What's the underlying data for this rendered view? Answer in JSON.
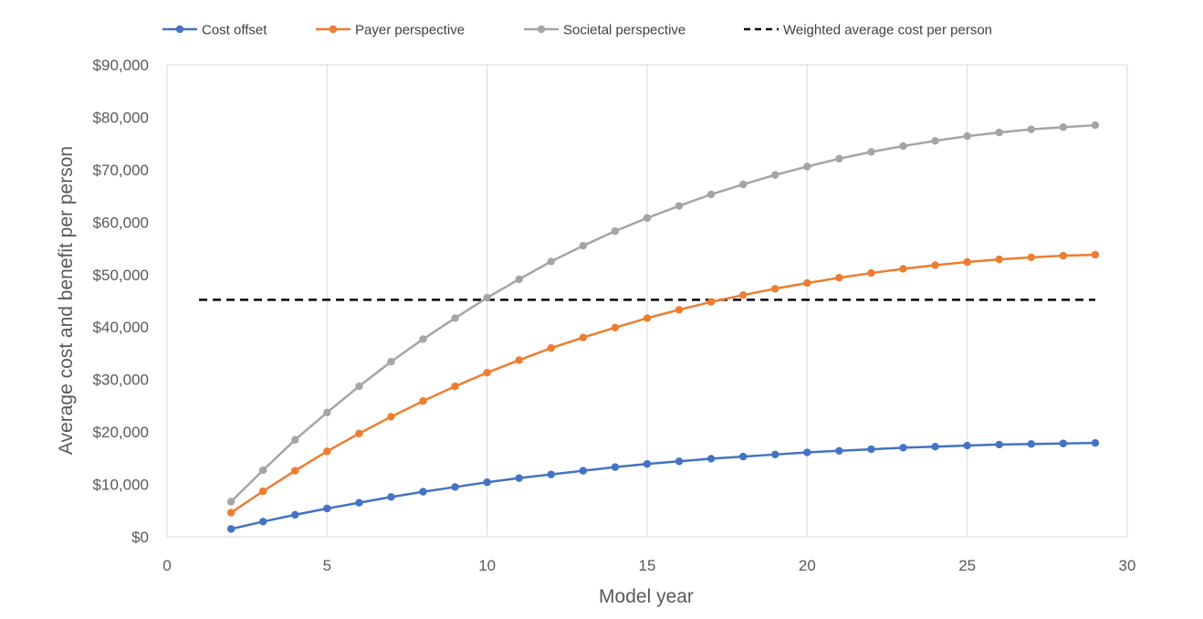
{
  "chart_data": {
    "type": "line",
    "title": "",
    "xlabel": "Model year",
    "ylabel": "Average cost and benefit per person",
    "xlim": [
      0,
      30
    ],
    "ylim": [
      0,
      90000
    ],
    "x_ticks": [
      0,
      5,
      10,
      15,
      20,
      25,
      30
    ],
    "y_ticks": [
      0,
      10000,
      20000,
      30000,
      40000,
      50000,
      60000,
      70000,
      80000,
      90000
    ],
    "y_tick_labels": [
      "$0",
      "$10,000",
      "$20,000",
      "$30,000",
      "$40,000",
      "$50,000",
      "$60,000",
      "$70,000",
      "$80,000",
      "$90,000"
    ],
    "grid": "vertical",
    "legend": "top",
    "x": [
      2,
      3,
      4,
      5,
      6,
      7,
      8,
      9,
      10,
      11,
      12,
      13,
      14,
      15,
      16,
      17,
      18,
      19,
      20,
      21,
      22,
      23,
      24,
      25,
      26,
      27,
      28,
      29
    ],
    "series": [
      {
        "name": "Cost offset",
        "color": "#4472c4",
        "values": [
          1500,
          2900,
          4200,
          5400,
          6500,
          7600,
          8600,
          9500,
          10400,
          11200,
          11900,
          12600,
          13300,
          13900,
          14400,
          14900,
          15300,
          15700,
          16100,
          16400,
          16700,
          17000,
          17200,
          17400,
          17600,
          17700,
          17800,
          17900
        ]
      },
      {
        "name": "Payer perspective",
        "color": "#ed7d31",
        "values": [
          4600,
          8700,
          12600,
          16300,
          19700,
          22900,
          25900,
          28700,
          31300,
          33700,
          36000,
          38000,
          39900,
          41700,
          43300,
          44800,
          46100,
          47300,
          48400,
          49400,
          50300,
          51100,
          51800,
          52400,
          52900,
          53300,
          53600,
          53800
        ]
      },
      {
        "name": "Societal perspective",
        "color": "#a5a5a5",
        "values": [
          6700,
          12700,
          18500,
          23700,
          28700,
          33400,
          37700,
          41700,
          45600,
          49100,
          52500,
          55500,
          58300,
          60800,
          63100,
          65300,
          67200,
          69000,
          70600,
          72100,
          73400,
          74500,
          75500,
          76400,
          77100,
          77700,
          78100,
          78500
        ]
      }
    ],
    "reference_line": {
      "name": "Weighted average cost per person",
      "color": "#000000",
      "style": "dashed",
      "y": 45200,
      "x_range": [
        1,
        29
      ]
    }
  }
}
